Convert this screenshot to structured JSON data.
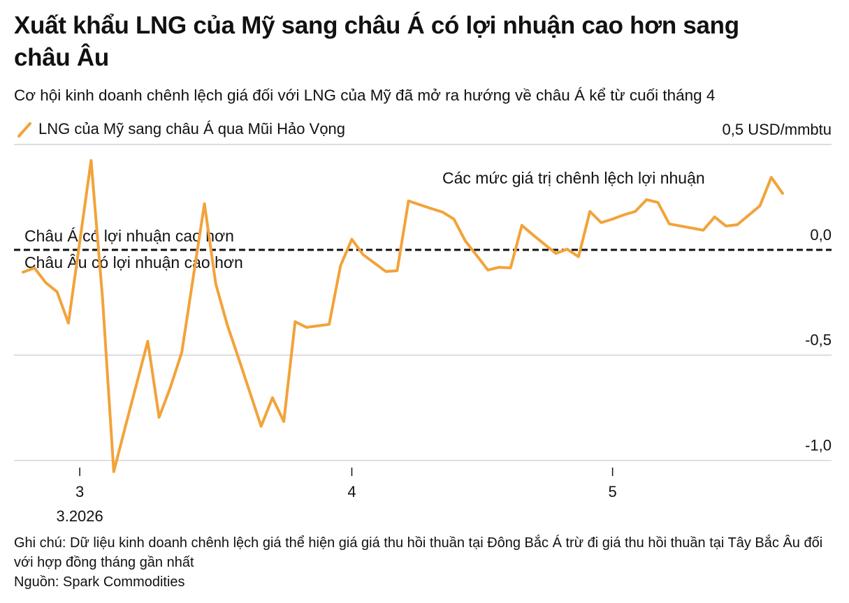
{
  "chart_data": {
    "type": "line",
    "title": "Xuất khẩu LNG của Mỹ sang châu Á có lợi nhuận cao hơn sang châu Âu",
    "subtitle": "Cơ hội kinh doanh chênh lệch giá đối với LNG của Mỹ đã mở ra hướng về châu Á kể từ cuối tháng 4",
    "annotations": [
      "Các mức giá trị chênh lệch lợi nhuận",
      "Châu Á có lợi nhuận cao hơn",
      "Châu Âu có lợi nhuận cao hơn"
    ],
    "note": "Ghi chú: Dữ liệu kinh doanh chênh lệch giá thể hiện giá giá thu hồi thuần tại Đông Bắc Á trừ đi giá thu hồi thuần tại Tây Bắc Âu đối với hợp đồng tháng gần nhất",
    "source": "Nguồn: Spark Commodities",
    "x_year_label": "3.2026",
    "categories": [
      null,
      null,
      null,
      null,
      null,
      "3",
      null,
      null,
      null,
      null,
      null,
      null,
      null,
      null,
      null,
      null,
      null,
      null,
      null,
      null,
      null,
      null,
      null,
      null,
      null,
      null,
      null,
      null,
      null,
      "4",
      null,
      null,
      null,
      null,
      null,
      null,
      null,
      null,
      null,
      null,
      null,
      null,
      null,
      null,
      null,
      null,
      null,
      null,
      null,
      null,
      null,
      null,
      "5",
      null,
      null,
      null,
      null,
      null,
      null,
      null,
      null,
      null,
      null,
      null,
      null,
      null,
      null,
      null
    ],
    "series": [
      {
        "name": "LNG của Mỹ sang châu Á qua Mũi Hảo Vọng",
        "color": "#f2a33a",
        "values": [
          -0.106,
          -0.086,
          -0.156,
          -0.199,
          -0.348,
          0.038,
          0.424,
          -0.222,
          -1.053,
          -0.844,
          -0.639,
          -0.434,
          -0.795,
          -0.652,
          -0.487,
          -0.134,
          0.219,
          -0.162,
          -0.354,
          -0.513,
          -0.675,
          -0.838,
          -0.702,
          -0.815,
          -0.341,
          -0.368,
          -0.361,
          -0.354,
          -0.076,
          0.05,
          -0.023,
          -0.063,
          -0.103,
          -0.099,
          0.232,
          0.214,
          0.196,
          0.179,
          0.146,
          0.043,
          -0.026,
          -0.096,
          -0.083,
          -0.086,
          0.116,
          0.07,
          0.026,
          -0.017,
          0.003,
          -0.033,
          0.182,
          0.129,
          0.146,
          0.166,
          0.182,
          0.238,
          0.225,
          0.123,
          0.113,
          0.103,
          0.093,
          0.156,
          0.113,
          0.119,
          0.164,
          0.209,
          0.344,
          0.268
        ]
      }
    ],
    "ylim": [
      -1.1,
      0.5
    ],
    "yticks": [
      {
        "value": -1.0,
        "label": "-1,0"
      },
      {
        "value": -0.5,
        "label": "-0,5"
      },
      {
        "value": 0,
        "label": "0,0"
      },
      {
        "value": 0.5,
        "label": "0,5 USD/mmbtu"
      }
    ],
    "grid": true,
    "legend": "top-left"
  }
}
